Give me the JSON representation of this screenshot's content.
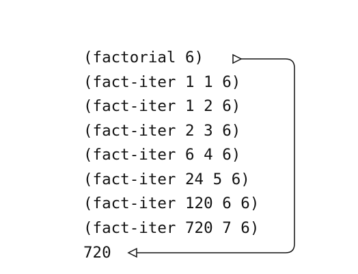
{
  "trace": {
    "lines": [
      "(factorial 6)",
      "(fact-iter 1 1 6)",
      "(fact-iter 1 2 6)",
      "(fact-iter 2 3 6)",
      "(fact-iter 6 4 6)",
      "(fact-iter 24 5 6)",
      "(fact-iter 120 6 6)",
      "(fact-iter 720 7 6)",
      "720"
    ]
  },
  "colors": {
    "text": "#111111",
    "arrow": "#111111",
    "background": "#ffffff"
  }
}
